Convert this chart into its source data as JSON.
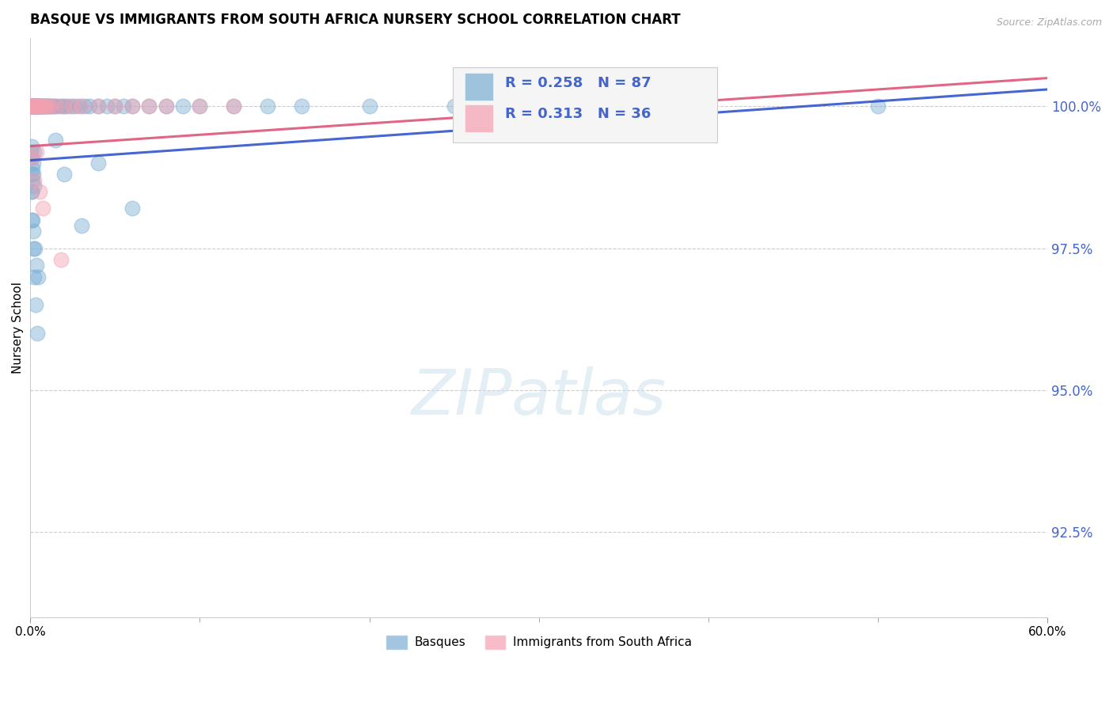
{
  "title": "BASQUE VS IMMIGRANTS FROM SOUTH AFRICA NURSERY SCHOOL CORRELATION CHART",
  "source": "Source: ZipAtlas.com",
  "ylabel": "Nursery School",
  "yticks": [
    92.5,
    95.0,
    97.5,
    100.0
  ],
  "ytick_labels": [
    "92.5%",
    "95.0%",
    "97.5%",
    "100.0%"
  ],
  "xlim": [
    0.0,
    60.0
  ],
  "ylim": [
    91.0,
    101.2
  ],
  "R_blue": 0.258,
  "N_blue": 87,
  "R_pink": 0.313,
  "N_pink": 36,
  "blue_color": "#7bafd4",
  "pink_color": "#f4a0b0",
  "blue_line_color": "#3355cc",
  "pink_line_color": "#dd5577",
  "legend_labels": [
    "Basques",
    "Immigrants from South Africa"
  ],
  "blue_x": [
    0.05,
    0.07,
    0.08,
    0.1,
    0.12,
    0.13,
    0.15,
    0.17,
    0.18,
    0.2,
    0.22,
    0.25,
    0.27,
    0.3,
    0.32,
    0.35,
    0.38,
    0.4,
    0.43,
    0.45,
    0.48,
    0.5,
    0.55,
    0.6,
    0.65,
    0.7,
    0.75,
    0.8,
    0.85,
    0.9,
    0.95,
    1.0,
    1.1,
    1.2,
    1.3,
    1.4,
    1.5,
    1.7,
    1.9,
    2.1,
    2.3,
    2.6,
    2.9,
    3.2,
    3.5,
    4.0,
    4.5,
    5.0,
    5.5,
    6.0,
    7.0,
    8.0,
    9.0,
    10.0,
    12.0,
    14.0,
    16.0,
    20.0,
    25.0,
    50.0,
    0.06,
    0.09,
    0.11,
    0.14,
    0.16,
    0.19,
    0.21,
    0.24,
    0.05,
    0.08,
    0.1,
    0.13,
    0.18,
    0.25,
    0.35,
    0.45,
    0.06,
    0.1,
    0.15,
    0.22,
    0.3,
    0.4,
    1.5,
    2.0,
    3.0,
    4.0,
    6.0
  ],
  "blue_y": [
    100.0,
    100.0,
    100.0,
    100.0,
    100.0,
    100.0,
    100.0,
    100.0,
    100.0,
    100.0,
    100.0,
    100.0,
    100.0,
    100.0,
    100.0,
    100.0,
    100.0,
    100.0,
    100.0,
    100.0,
    100.0,
    100.0,
    100.0,
    100.0,
    100.0,
    100.0,
    100.0,
    100.0,
    100.0,
    100.0,
    100.0,
    100.0,
    100.0,
    100.0,
    100.0,
    100.0,
    100.0,
    100.0,
    100.0,
    100.0,
    100.0,
    100.0,
    100.0,
    100.0,
    100.0,
    100.0,
    100.0,
    100.0,
    100.0,
    100.0,
    100.0,
    100.0,
    100.0,
    100.0,
    100.0,
    100.0,
    100.0,
    100.0,
    100.0,
    100.0,
    99.3,
    99.1,
    98.9,
    98.7,
    98.8,
    99.0,
    99.2,
    98.6,
    99.2,
    98.8,
    98.5,
    98.0,
    97.8,
    97.5,
    97.2,
    97.0,
    98.5,
    98.0,
    97.5,
    97.0,
    96.5,
    96.0,
    99.4,
    98.8,
    97.9,
    99.0,
    98.2
  ],
  "pink_x": [
    0.06,
    0.08,
    0.1,
    0.13,
    0.15,
    0.18,
    0.2,
    0.25,
    0.3,
    0.35,
    0.4,
    0.45,
    0.5,
    0.6,
    0.7,
    0.8,
    0.9,
    1.0,
    1.2,
    1.5,
    2.0,
    2.5,
    3.0,
    4.0,
    5.0,
    6.0,
    7.0,
    8.0,
    10.0,
    12.0,
    0.12,
    0.22,
    0.38,
    0.55,
    0.75,
    1.8
  ],
  "pink_y": [
    100.0,
    100.0,
    100.0,
    100.0,
    100.0,
    100.0,
    100.0,
    100.0,
    100.0,
    100.0,
    100.0,
    100.0,
    100.0,
    100.0,
    100.0,
    100.0,
    100.0,
    100.0,
    100.0,
    100.0,
    100.0,
    100.0,
    100.0,
    100.0,
    100.0,
    100.0,
    100.0,
    100.0,
    100.0,
    100.0,
    99.1,
    98.7,
    99.2,
    98.5,
    98.2,
    97.3
  ],
  "blue_trend_x": [
    0.0,
    60.0
  ],
  "blue_trend_y": [
    99.05,
    100.3
  ],
  "pink_trend_x": [
    0.0,
    60.0
  ],
  "pink_trend_y": [
    99.3,
    100.5
  ]
}
